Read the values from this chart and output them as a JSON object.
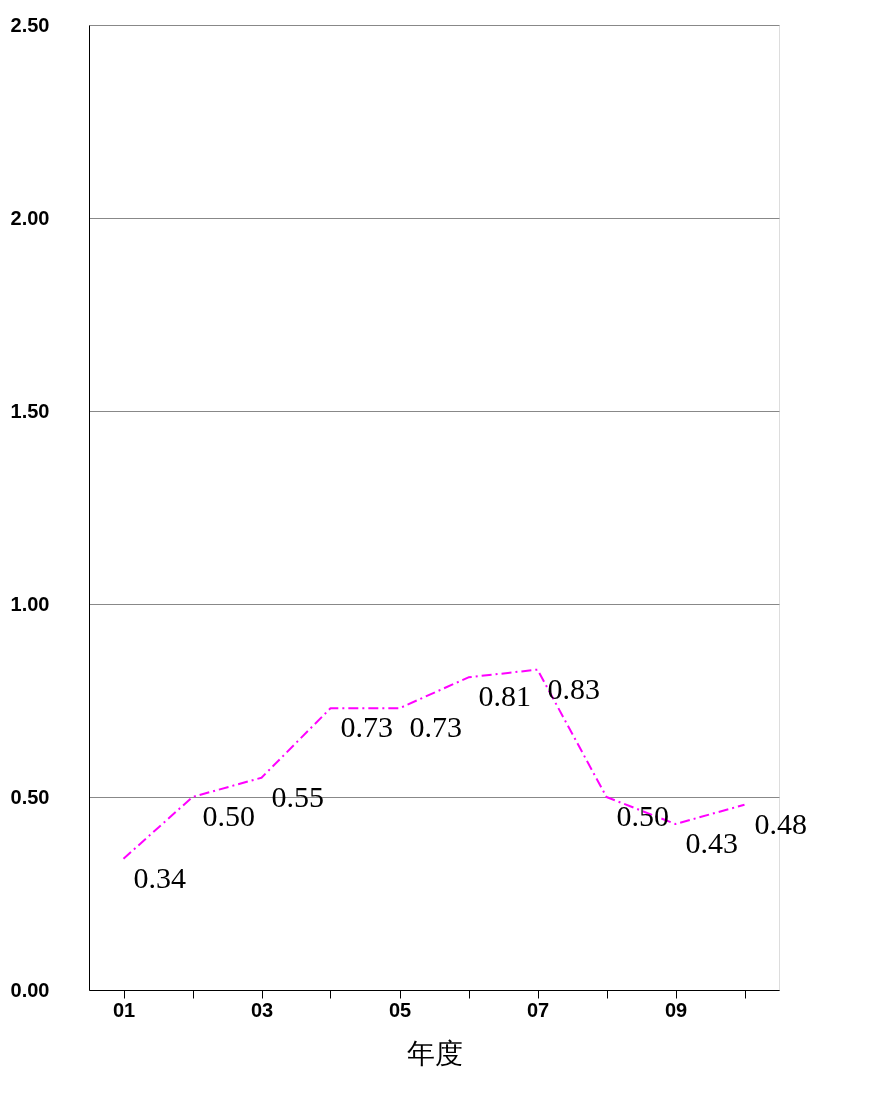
{
  "chart_data": {
    "type": "line",
    "xlabel": "年度",
    "categories": [
      "01",
      null,
      "03",
      null,
      "05",
      null,
      "07",
      null,
      "09",
      null
    ],
    "series": [
      {
        "color": "#ff00ff",
        "values": [
          0.34,
          0.5,
          0.55,
          0.73,
          0.73,
          0.81,
          0.83,
          0.5,
          0.43,
          0.48
        ],
        "value_labels": [
          "0.34",
          "0.50",
          "0.55",
          "0.73",
          "0.73",
          "0.81",
          "0.83",
          "0.50",
          "0.43",
          "0.48"
        ]
      }
    ],
    "ylim": [
      0,
      2.5
    ],
    "yticks": [
      {
        "value": 0,
        "label": "0.00"
      },
      {
        "value": 0.5,
        "label": "0.50"
      },
      {
        "value": 1,
        "label": "1.00"
      },
      {
        "value": 1.5,
        "label": "1.50"
      },
      {
        "value": 2,
        "label": "2.00"
      },
      {
        "value": 2.5,
        "label": "2.50"
      }
    ],
    "grid": "y",
    "line_style": "dashed",
    "marker": "none"
  }
}
